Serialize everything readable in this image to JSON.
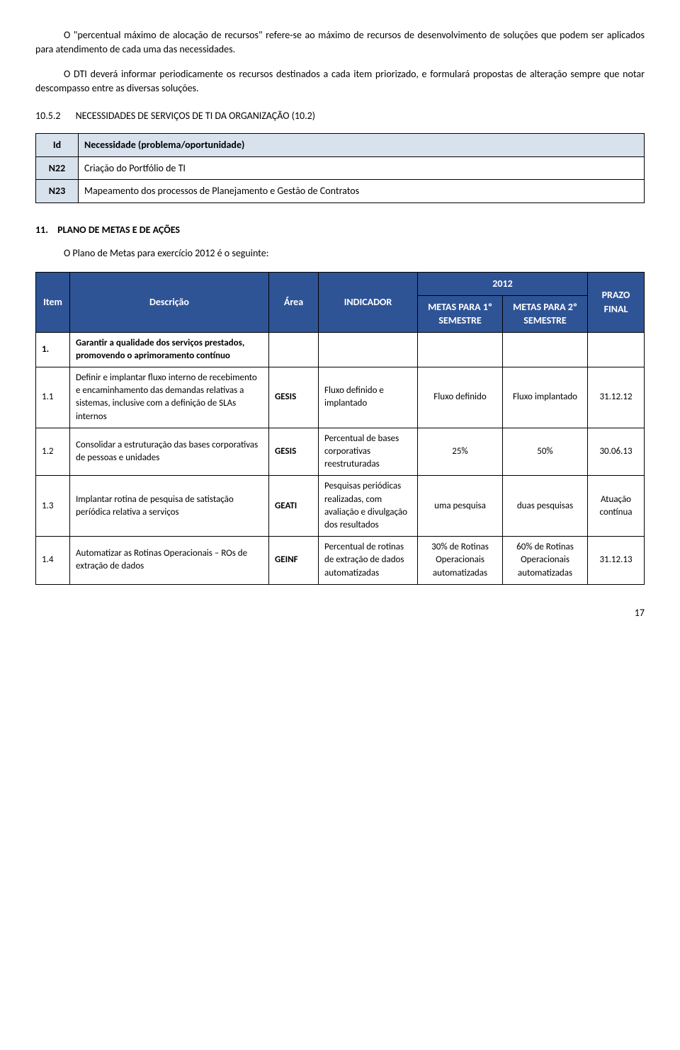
{
  "paragraphs": {
    "p1": "O \"percentual máximo de alocação de recursos\" refere-se ao máximo de recursos de desenvolvimento de soluções que podem ser aplicados para atendimento de cada uma das necessidades.",
    "p2": "O DTI deverá informar periodicamente os recursos destinados a cada item priorizado, e formulará propostas de alteração sempre que notar descompasso entre as diversas soluções."
  },
  "section_10_5_2": {
    "num": "10.5.2",
    "title": "NECESSIDADES DE SERVIÇOS DE TI DA ORGANIZAÇÃO (10.2)"
  },
  "table1": {
    "headers": {
      "id": "Id",
      "need": "Necessidade (problema/oportunidade)"
    },
    "rows": [
      {
        "id": "N22",
        "text": "Criação do Portfólio de TI"
      },
      {
        "id": "N23",
        "text": "Mapeamento dos processos de Planejamento e Gestão de Contratos"
      }
    ]
  },
  "section_11": {
    "num": "11.",
    "title": "PLANO DE METAS E DE AÇÕES",
    "intro": "O Plano de Metas para exercício 2012 é o seguinte:"
  },
  "plan_table": {
    "headers": {
      "item": "Item",
      "desc": "Descrição",
      "area": "Área",
      "indicador": "INDICADOR",
      "year": "2012",
      "metas1": "METAS PARA 1º SEMESTRE",
      "metas2": "METAS PARA 2º SEMESTRE",
      "prazo": "PRAZO FINAL"
    },
    "group": {
      "item": "1.",
      "desc": "Garantir a qualidade dos serviços prestados, promovendo o aprimoramento contínuo"
    },
    "rows": [
      {
        "item": "1.1",
        "desc": "Definir e implantar fluxo interno de recebimento e encaminhamento das demandas relativas a sistemas, inclusive com a definição de SLAs internos",
        "area": "GESIS",
        "indicador": "Fluxo definido e implantado",
        "m1": "Fluxo definido",
        "m2": "Fluxo implantado",
        "prazo": "31.12.12"
      },
      {
        "item": "1.2",
        "desc": "Consolidar a estruturação das bases corporativas de pessoas e unidades",
        "area": "GESIS",
        "indicador": "Percentual de bases corporativas reestruturadas",
        "m1": "25%",
        "m2": "50%",
        "prazo": "30.06.13"
      },
      {
        "item": "1.3",
        "desc": "Implantar rotina de pesquisa de satistação períódica relativa a serviços",
        "area": "GEATI",
        "indicador": "Pesquisas periódicas realizadas, com avaliação e divulgação dos resultados",
        "m1": "uma pesquisa",
        "m2": "duas pesquisas",
        "prazo": "Atuação contínua"
      },
      {
        "item": "1.4",
        "desc": "Automatizar as Rotinas Operacionais – ROs de extração de dados",
        "area": "GEINF",
        "indicador": "Percentual de rotinas de extração de dados automatizadas",
        "m1": "30% de Rotinas Operacionais automatizadas",
        "m2": "60% de Rotinas Operacionais automatizadas",
        "prazo": "31.12.13"
      }
    ]
  },
  "page_number": "17",
  "colors": {
    "header_blue": "#2f5496",
    "light_blue": "#d8e2ed"
  }
}
